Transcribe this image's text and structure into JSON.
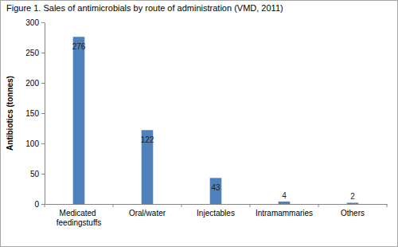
{
  "chart_data": {
    "type": "bar",
    "title": "Figure 1. Sales of antimicrobials by route of administration (VMD, 2011)",
    "y_label": "Antibiotics (tonnes)",
    "categories": [
      "Medicated feedingstuffs",
      "Oral/water",
      "Injectables",
      "Intramammaries",
      "Others"
    ],
    "values": [
      276,
      122,
      43,
      4,
      2
    ],
    "color": "#4f81bd",
    "ylim": [
      0,
      300
    ],
    "yticks": [
      0,
      50,
      100,
      150,
      200,
      250,
      300
    ],
    "grid": false,
    "data_labels": true
  }
}
